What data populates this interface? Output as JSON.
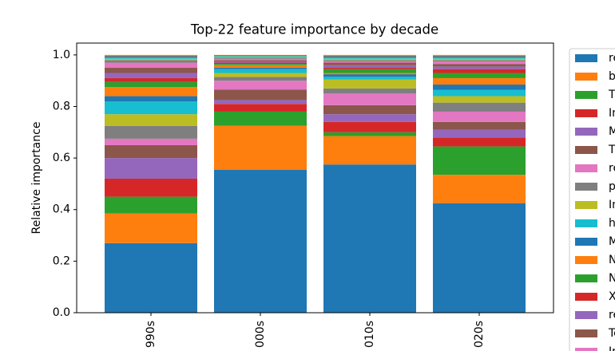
{
  "chart_data": {
    "type": "stacked_bar",
    "title": "Top-22 feature importance by decade",
    "y_label": "Relative importance",
    "categories": [
      "990s",
      "000s",
      "010s",
      "020s"
    ],
    "ylim": [
      0,
      1.046
    ],
    "yticks": [
      {
        "value": 0,
        "label": "0.0"
      },
      {
        "value": 0.2,
        "label": "0.2"
      },
      {
        "value": 0.4,
        "label": "0.4"
      },
      {
        "value": 0.6,
        "label": "0.6"
      },
      {
        "value": 0.8,
        "label": "0.8"
      },
      {
        "value": 1,
        "label": "1.0"
      }
    ],
    "series": [
      {
        "name": "re",
        "color": "#1f77b4",
        "values": [
          0.27,
          0.555,
          0.575,
          0.425
        ]
      },
      {
        "name": "b",
        "color": "#ff7f0e",
        "values": [
          0.115,
          0.17,
          0.11,
          0.11
        ]
      },
      {
        "name": "Ti",
        "color": "#2ca02c",
        "values": [
          0.065,
          0.055,
          0.015,
          0.11
        ]
      },
      {
        "name": "In",
        "color": "#d62728",
        "values": [
          0.07,
          0.03,
          0.04,
          0.035
        ]
      },
      {
        "name": "M",
        "color": "#9467bd",
        "values": [
          0.08,
          0.015,
          0.03,
          0.03
        ]
      },
      {
        "name": "Ti",
        "color": "#8c564b",
        "values": [
          0.05,
          0.04,
          0.035,
          0.03
        ]
      },
      {
        "name": "re",
        "color": "#e377c2",
        "values": [
          0.025,
          0.035,
          0.045,
          0.04
        ]
      },
      {
        "name": "p",
        "color": "#7f7f7f",
        "values": [
          0.05,
          0.015,
          0.02,
          0.035
        ]
      },
      {
        "name": "In",
        "color": "#bcbd22",
        "values": [
          0.045,
          0.015,
          0.035,
          0.025
        ]
      },
      {
        "name": "h",
        "color": "#17becf",
        "values": [
          0.05,
          0.015,
          0.01,
          0.025
        ]
      },
      {
        "name": "M",
        "color": "#1f77b4",
        "values": [
          0.02,
          0.005,
          0.01,
          0.02
        ]
      },
      {
        "name": "N",
        "color": "#ff7f0e",
        "values": [
          0.035,
          0.01,
          0.005,
          0.025
        ]
      },
      {
        "name": "N",
        "color": "#2ca02c",
        "values": [
          0.02,
          0.005,
          0.015,
          0.02
        ]
      },
      {
        "name": "X",
        "color": "#d62728",
        "values": [
          0.015,
          0.005,
          0.005,
          0.015
        ]
      },
      {
        "name": "re",
        "color": "#9467bd",
        "values": [
          0.02,
          0.005,
          0.01,
          0.01
        ]
      },
      {
        "name": "Te",
        "color": "#8c564b",
        "values": [
          0.02,
          0.005,
          0.01,
          0.01
        ]
      },
      {
        "name": "In",
        "color": "#e377c2",
        "values": [
          0.02,
          0.005,
          0.005,
          0.01
        ]
      },
      {
        "color": "#7f7f7f",
        "values": [
          0.01,
          0.005,
          0.005,
          0.005
        ]
      },
      {
        "color": "#bcbd22",
        "values": [
          0.005,
          0.003,
          0.005,
          0.005
        ]
      },
      {
        "color": "#17becf",
        "values": [
          0.005,
          0.003,
          0.005,
          0.005
        ]
      },
      {
        "color": "#1f77b4",
        "values": [
          0.005,
          0.002,
          0.005,
          0.005
        ]
      },
      {
        "color": "#ff7f0e",
        "values": [
          0.005,
          0.002,
          0.005,
          0.005
        ]
      }
    ]
  }
}
